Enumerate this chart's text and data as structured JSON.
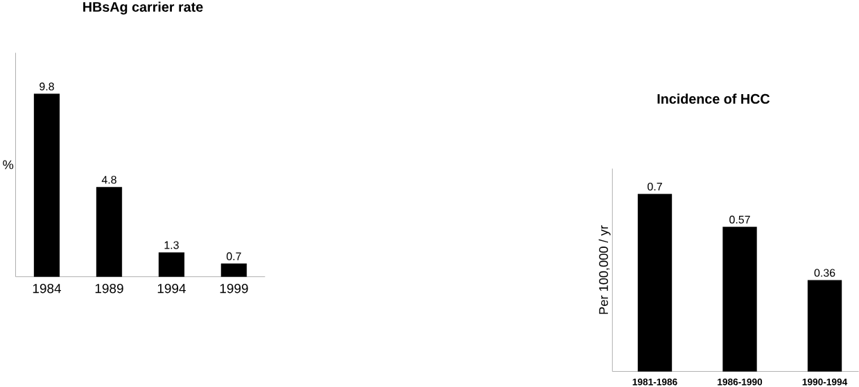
{
  "chart_data": [
    {
      "type": "bar",
      "title": "HBsAg carrier rate",
      "ylabel": "%",
      "categories": [
        "1984",
        "1989",
        "1994",
        "1999"
      ],
      "values": [
        9.8,
        4.8,
        1.3,
        0.7
      ],
      "color": "#000000",
      "ylim": [
        0,
        12
      ],
      "data_labels": true,
      "tick_labels": "x"
    },
    {
      "type": "bar",
      "title": "Incidence of HCC",
      "ylabel": "Per 100,000 / yr",
      "categories": [
        "1981-1986",
        "1986-1990",
        "1990-1994"
      ],
      "values": [
        0.7,
        0.57,
        0.36
      ],
      "color": "#000000",
      "ylim": [
        0,
        0.8
      ],
      "data_labels": true,
      "tick_labels": "x"
    }
  ]
}
